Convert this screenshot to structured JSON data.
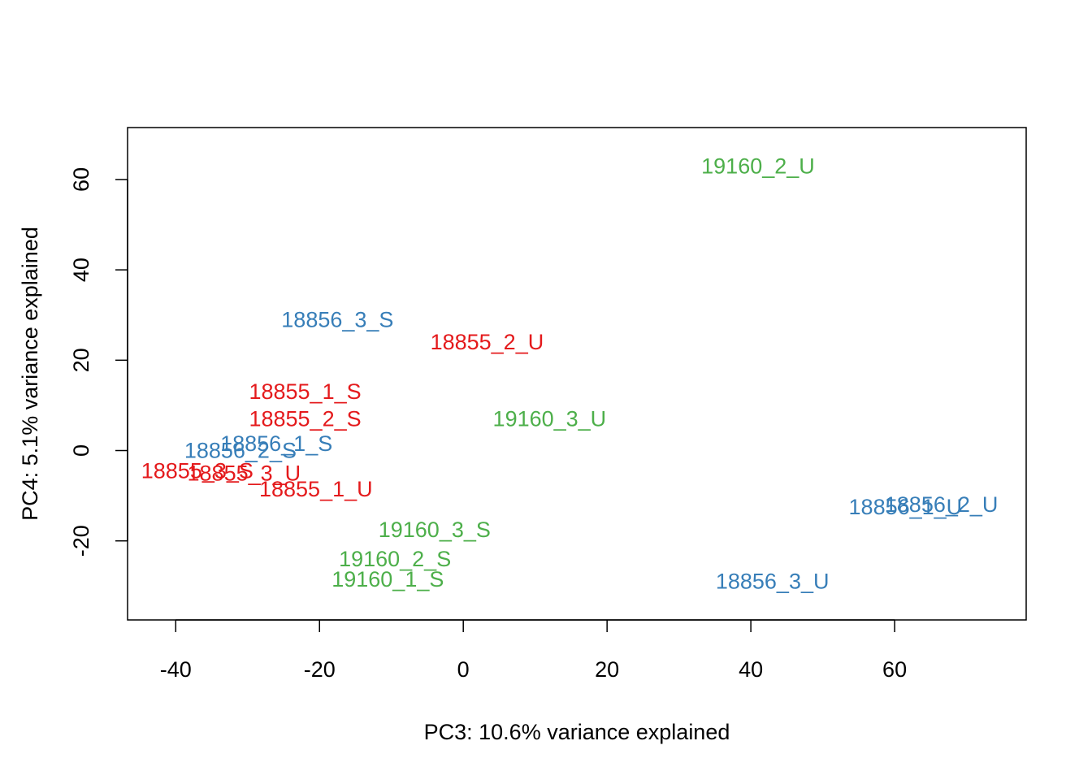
{
  "chart_data": {
    "type": "scatter",
    "title": "",
    "xlabel": "PC3: 10.6% variance explained",
    "ylabel": "PC4: 5.1% variance explained",
    "xlim": [
      -46.7,
      78.3
    ],
    "ylim": [
      -37.5,
      71.5
    ],
    "xticks": [
      -40,
      -20,
      0,
      20,
      40,
      60
    ],
    "yticks": [
      -20,
      0,
      20,
      40,
      60
    ],
    "xtick_labels": [
      "-40",
      "-20",
      "0",
      "20",
      "40",
      "60"
    ],
    "ytick_labels": [
      "-20",
      "0",
      "20",
      "40",
      "60"
    ],
    "grid": false,
    "marker": "text labels",
    "groups": [
      {
        "color": "#e41a1c"
      },
      {
        "color": "#377eb8"
      },
      {
        "color": "#4daf4a"
      }
    ],
    "points": [
      {
        "label": "19160_2_U",
        "x": 41.0,
        "y": 63.0,
        "group": 2
      },
      {
        "label": "18856_3_S",
        "x": -17.5,
        "y": 29.0,
        "group": 1
      },
      {
        "label": "18855_2_U",
        "x": 3.3,
        "y": 24.0,
        "group": 0
      },
      {
        "label": "18855_1_S",
        "x": -22.0,
        "y": 13.0,
        "group": 0
      },
      {
        "label": "18855_2_S",
        "x": -22.0,
        "y": 7.0,
        "group": 0
      },
      {
        "label": "19160_3_U",
        "x": 12.0,
        "y": 7.0,
        "group": 2
      },
      {
        "label": "18856_1_S",
        "x": -26.0,
        "y": 1.5,
        "group": 1
      },
      {
        "label": "18856_2_S",
        "x": -31.0,
        "y": 0.0,
        "group": 1
      },
      {
        "label": "18855_3_S",
        "x": -37.0,
        "y": -4.5,
        "group": 0
      },
      {
        "label": "18855_3_U",
        "x": -30.5,
        "y": -5.0,
        "group": 0
      },
      {
        "label": "18855_1_U",
        "x": -20.5,
        "y": -8.5,
        "group": 0
      },
      {
        "label": "18856_1_U",
        "x": 61.5,
        "y": -12.5,
        "group": 1
      },
      {
        "label": "18856_2_U",
        "x": 66.5,
        "y": -12.0,
        "group": 1
      },
      {
        "label": "19160_3_S",
        "x": -4.0,
        "y": -17.5,
        "group": 2
      },
      {
        "label": "19160_2_S",
        "x": -9.5,
        "y": -24.0,
        "group": 2
      },
      {
        "label": "19160_1_S",
        "x": -10.5,
        "y": -28.5,
        "group": 2
      },
      {
        "label": "18856_3_U",
        "x": 43.0,
        "y": -29.0,
        "group": 1
      }
    ]
  }
}
